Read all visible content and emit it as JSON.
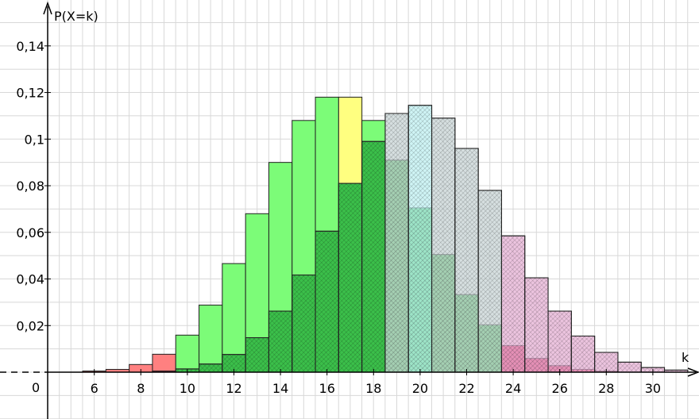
{
  "chart_data": {
    "type": "bar",
    "title": "",
    "xlabel": "k",
    "ylabel": "P(X=k)",
    "origin_label": "0",
    "xlim": [
      4,
      32
    ],
    "ylim": [
      0,
      0.15
    ],
    "grid": true,
    "x_tick_labels": [
      "6",
      "8",
      "10",
      "12",
      "14",
      "16",
      "18",
      "20",
      "22",
      "24",
      "26",
      "28",
      "30"
    ],
    "y_tick_labels": [
      "0,02",
      "0,04",
      "0,06",
      "0,08",
      "0,1",
      "0,12",
      "0,14"
    ],
    "colors": {
      "green": "#7cfc78",
      "red": "#ff8080",
      "yellow": "#ffff80",
      "cyan": "#bff0f2",
      "hatch_green": "#3bbf4a",
      "hatch_grey": "#c8d4d6",
      "hatch_pink": "#e6b0d4",
      "hatch_red": "#e2305e",
      "grid": "#d8d8d8"
    },
    "series": [
      {
        "name": "",
        "style": "solid",
        "points": [
          {
            "k": 6,
            "p": 0.0005,
            "color": "red"
          },
          {
            "k": 7,
            "p": 0.0012,
            "color": "red"
          },
          {
            "k": 8,
            "p": 0.0033,
            "color": "red"
          },
          {
            "k": 9,
            "p": 0.0077,
            "color": "red"
          },
          {
            "k": 10,
            "p": 0.0159,
            "color": "green"
          },
          {
            "k": 11,
            "p": 0.0288,
            "color": "green"
          },
          {
            "k": 12,
            "p": 0.0466,
            "color": "green"
          },
          {
            "k": 13,
            "p": 0.068,
            "color": "green"
          },
          {
            "k": 14,
            "p": 0.09,
            "color": "green"
          },
          {
            "k": 15,
            "p": 0.108,
            "color": "green"
          },
          {
            "k": 16,
            "p": 0.118,
            "color": "green"
          },
          {
            "k": 17,
            "p": 0.118,
            "color": "yellow"
          },
          {
            "k": 18,
            "p": 0.108,
            "color": "green"
          }
        ]
      },
      {
        "name": "",
        "style": "hatched",
        "points": [
          {
            "k": 9,
            "p": 0.0005,
            "color": "hatch_red"
          },
          {
            "k": 10,
            "p": 0.0014,
            "color": "hatch_green"
          },
          {
            "k": 11,
            "p": 0.0035,
            "color": "hatch_green"
          },
          {
            "k": 12,
            "p": 0.0076,
            "color": "hatch_green"
          },
          {
            "k": 13,
            "p": 0.0148,
            "color": "hatch_green"
          },
          {
            "k": 14,
            "p": 0.0262,
            "color": "hatch_green"
          },
          {
            "k": 15,
            "p": 0.0417,
            "color": "hatch_green"
          },
          {
            "k": 16,
            "p": 0.0605,
            "color": "hatch_green"
          },
          {
            "k": 17,
            "p": 0.081,
            "color": "hatch_green"
          },
          {
            "k": 18,
            "p": 0.099,
            "color": "hatch_green"
          },
          {
            "k": 19,
            "p": 0.091,
            "color": "hatch_green"
          },
          {
            "k": 20,
            "p": 0.0705,
            "color": "hatch_green"
          },
          {
            "k": 21,
            "p": 0.0505,
            "color": "hatch_green"
          },
          {
            "k": 22,
            "p": 0.0333,
            "color": "hatch_green"
          },
          {
            "k": 23,
            "p": 0.0203,
            "color": "hatch_green"
          },
          {
            "k": 24,
            "p": 0.0114,
            "color": "hatch_red"
          },
          {
            "k": 25,
            "p": 0.0059,
            "color": "hatch_red"
          },
          {
            "k": 26,
            "p": 0.0028,
            "color": "hatch_red"
          },
          {
            "k": 27,
            "p": 0.0012,
            "color": "hatch_red"
          },
          {
            "k": 28,
            "p": 0.0005,
            "color": "hatch_red"
          }
        ]
      },
      {
        "name": "",
        "style": "hatched-light",
        "points": [
          {
            "k": 19,
            "p": 0.111,
            "color": "hatch_grey"
          },
          {
            "k": 20,
            "p": 0.1145,
            "color": "cyan"
          },
          {
            "k": 21,
            "p": 0.109,
            "color": "hatch_grey"
          },
          {
            "k": 22,
            "p": 0.096,
            "color": "hatch_grey"
          },
          {
            "k": 23,
            "p": 0.078,
            "color": "hatch_grey"
          },
          {
            "k": 24,
            "p": 0.0585,
            "color": "hatch_pink"
          },
          {
            "k": 25,
            "p": 0.0405,
            "color": "hatch_pink"
          },
          {
            "k": 26,
            "p": 0.0262,
            "color": "hatch_pink"
          },
          {
            "k": 27,
            "p": 0.0155,
            "color": "hatch_pink"
          },
          {
            "k": 28,
            "p": 0.0085,
            "color": "hatch_pink"
          },
          {
            "k": 29,
            "p": 0.0043,
            "color": "hatch_pink"
          },
          {
            "k": 30,
            "p": 0.002,
            "color": "hatch_pink"
          },
          {
            "k": 31,
            "p": 0.0009,
            "color": "hatch_pink"
          }
        ]
      }
    ]
  }
}
